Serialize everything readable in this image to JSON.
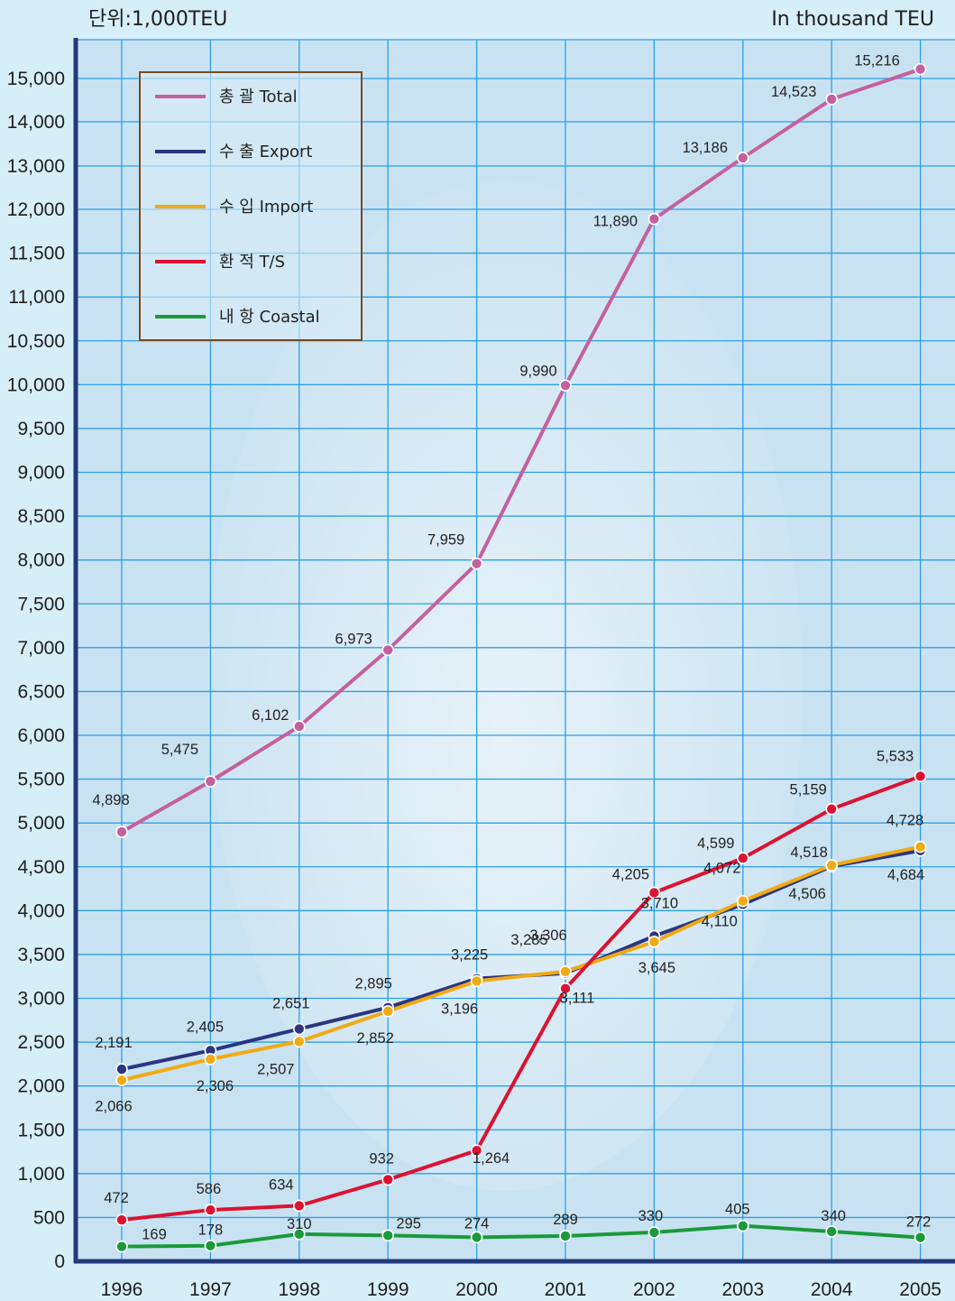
{
  "colors": {
    "background": "#d6eef8",
    "grid": "#2aa0e6",
    "axis": "#223a7a",
    "legend_border": "#7a4a1e"
  },
  "chart_data": {
    "type": "line",
    "unit_left": "단위:1,000TEU",
    "unit_right": "In thousand TEU",
    "x": [
      "1996",
      "1997",
      "1998",
      "1999",
      "2000",
      "2001",
      "2002",
      "2003",
      "2004",
      "2005"
    ],
    "ylim": [
      0,
      15000
    ],
    "yticks": [
      "0",
      "500",
      "1,000",
      "1,500",
      "2,000",
      "2,500",
      "3,000",
      "3,500",
      "4,000",
      "4,500",
      "5,000",
      "5,500",
      "6,000",
      "6,500",
      "7,000",
      "7,500",
      "8,000",
      "8,500",
      "9,000",
      "9,500",
      "10,000",
      "10,500",
      "11,000",
      "11,500",
      "12,000",
      "13,000",
      "14,000",
      "15,000"
    ],
    "grid": true,
    "legend_position": "top-left",
    "series": [
      {
        "key": "total",
        "name": "총 괄 Total",
        "color": "#c4609e",
        "values": [
          4898,
          5475,
          6102,
          6973,
          7959,
          9990,
          11890,
          13186,
          14523,
          15216
        ],
        "labels": [
          "4,898",
          "5,475",
          "6,102",
          "6,973",
          "7,959",
          "9,990",
          "11,890",
          "13,186",
          "14,523",
          "15,216"
        ]
      },
      {
        "key": "export",
        "name": "수 출 Export",
        "color": "#2b3580",
        "values": [
          2191,
          2405,
          2651,
          2895,
          3225,
          3285,
          3710,
          4072,
          4506,
          4684
        ],
        "labels": [
          "2,191",
          "2,405",
          "2,651",
          "2,895",
          "3,225",
          "3,285",
          "3,710",
          "4,072",
          "4,506",
          "4,684"
        ]
      },
      {
        "key": "import",
        "name": "수 입 Import",
        "color": "#f0aa14",
        "values": [
          2066,
          2306,
          2507,
          2852,
          3196,
          3306,
          3645,
          4110,
          4518,
          4728
        ],
        "labels": [
          "2,066",
          "2,306",
          "2,507",
          "2,852",
          "3,196",
          "3,306",
          "3,645",
          "4,110",
          "4,518",
          "4,728"
        ]
      },
      {
        "key": "ts",
        "name": "환 적 T/S",
        "color": "#dc1232",
        "values": [
          472,
          586,
          634,
          932,
          1264,
          3111,
          4205,
          4599,
          5159,
          5533
        ],
        "labels": [
          "472",
          "586",
          "634",
          "932",
          "1,264",
          "3,111",
          "4,205",
          "4,599",
          "5,159",
          "5,533"
        ]
      },
      {
        "key": "coastal",
        "name": "내 항 Coastal",
        "color": "#1a9a3a",
        "values": [
          169,
          178,
          310,
          295,
          274,
          289,
          330,
          405,
          340,
          272
        ],
        "labels": [
          "169",
          "178",
          "310",
          "295",
          "274",
          "289",
          "330",
          "405",
          "340",
          "272"
        ]
      }
    ]
  }
}
